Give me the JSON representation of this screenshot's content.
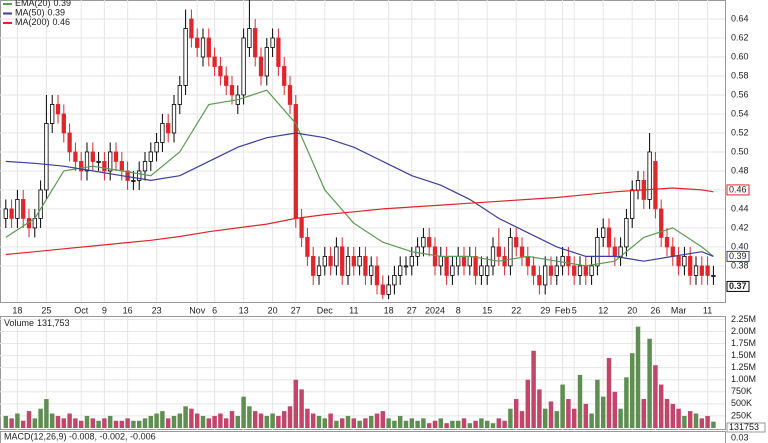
{
  "chart_data": {
    "type": "candlestick",
    "ylim": [
      0.342,
      0.66
    ],
    "yticks": [
      {
        "value": 0.38,
        "label": "0.38"
      },
      {
        "value": 0.4,
        "label": "0.40"
      },
      {
        "value": 0.42,
        "label": "0.42"
      },
      {
        "value": 0.44,
        "label": "0.44"
      },
      {
        "value": 0.46,
        "label": "0.46"
      },
      {
        "value": 0.48,
        "label": "0.48"
      },
      {
        "value": 0.5,
        "label": "0.50"
      },
      {
        "value": 0.52,
        "label": "0.52"
      },
      {
        "value": 0.54,
        "label": "0.54"
      },
      {
        "value": 0.56,
        "label": "0.56"
      },
      {
        "value": 0.58,
        "label": "0.58"
      },
      {
        "value": 0.6,
        "label": "0.60"
      },
      {
        "value": 0.62,
        "label": "0.62"
      },
      {
        "value": 0.64,
        "label": "0.64"
      }
    ],
    "xlim": [
      -1,
      124
    ],
    "xticks": [
      {
        "value": 2,
        "label": "18"
      },
      {
        "value": 7,
        "label": "25"
      },
      {
        "value": 13,
        "label": "Oct"
      },
      {
        "value": 17,
        "label": "9"
      },
      {
        "value": 21,
        "label": "16"
      },
      {
        "value": 26,
        "label": "23"
      },
      {
        "value": 33,
        "label": "Nov"
      },
      {
        "value": 36,
        "label": "6"
      },
      {
        "value": 41,
        "label": "13"
      },
      {
        "value": 46,
        "label": "20"
      },
      {
        "value": 50,
        "label": "27"
      },
      {
        "value": 55,
        "label": "Dec"
      },
      {
        "value": 60,
        "label": "11"
      },
      {
        "value": 66,
        "label": "18"
      },
      {
        "value": 70,
        "label": "27"
      },
      {
        "value": 74,
        "label": "2024"
      },
      {
        "value": 78,
        "label": "8"
      },
      {
        "value": 83,
        "label": "15"
      },
      {
        "value": 88,
        "label": "22"
      },
      {
        "value": 93,
        "label": "29"
      },
      {
        "value": 96,
        "label": "Feb"
      },
      {
        "value": 98,
        "label": "5"
      },
      {
        "value": 103,
        "label": "12"
      },
      {
        "value": 108,
        "label": "20"
      },
      {
        "value": 112,
        "label": "26"
      },
      {
        "value": 116,
        "label": "Mar"
      },
      {
        "value": 121,
        "label": "11"
      }
    ],
    "grid": true,
    "up_color": "#000000",
    "down_color": "#e0262b",
    "open": [
      0.43,
      0.44,
      0.43,
      0.45,
      0.43,
      0.42,
      0.43,
      0.46,
      0.53,
      0.55,
      0.54,
      0.52,
      0.5,
      0.49,
      0.48,
      0.5,
      0.49,
      0.49,
      0.48,
      0.5,
      0.49,
      0.48,
      0.47,
      0.47,
      0.48,
      0.49,
      0.5,
      0.51,
      0.53,
      0.52,
      0.55,
      0.57,
      0.64,
      0.62,
      0.6,
      0.62,
      0.6,
      0.59,
      0.58,
      0.57,
      0.55,
      0.56,
      0.61,
      0.63,
      0.6,
      0.58,
      0.61,
      0.62,
      0.59,
      0.57,
      0.55,
      0.43,
      0.41,
      0.39,
      0.37,
      0.38,
      0.39,
      0.38,
      0.4,
      0.37,
      0.39,
      0.38,
      0.39,
      0.37,
      0.38,
      0.36,
      0.35,
      0.36,
      0.37,
      0.38,
      0.38,
      0.39,
      0.4,
      0.41,
      0.4,
      0.38,
      0.39,
      0.37,
      0.38,
      0.39,
      0.38,
      0.39,
      0.37,
      0.37,
      0.38,
      0.4,
      0.39,
      0.38,
      0.41,
      0.4,
      0.39,
      0.38,
      0.37,
      0.36,
      0.38,
      0.37,
      0.38,
      0.39,
      0.38,
      0.37,
      0.38,
      0.37,
      0.38,
      0.41,
      0.42,
      0.4,
      0.39,
      0.4,
      0.43,
      0.46,
      0.47,
      0.45,
      0.49,
      0.44,
      0.41,
      0.4,
      0.39,
      0.38,
      0.39,
      0.37,
      0.38,
      0.38,
      0.37
    ],
    "high": [
      0.45,
      0.45,
      0.46,
      0.46,
      0.44,
      0.44,
      0.47,
      0.56,
      0.56,
      0.56,
      0.55,
      0.53,
      0.51,
      0.5,
      0.51,
      0.51,
      0.5,
      0.5,
      0.51,
      0.51,
      0.5,
      0.49,
      0.48,
      0.49,
      0.5,
      0.51,
      0.52,
      0.54,
      0.54,
      0.56,
      0.58,
      0.65,
      0.65,
      0.63,
      0.63,
      0.63,
      0.61,
      0.6,
      0.59,
      0.58,
      0.57,
      0.63,
      0.66,
      0.64,
      0.61,
      0.62,
      0.63,
      0.63,
      0.6,
      0.58,
      0.56,
      0.44,
      0.42,
      0.4,
      0.39,
      0.4,
      0.4,
      0.41,
      0.41,
      0.4,
      0.4,
      0.4,
      0.4,
      0.39,
      0.39,
      0.37,
      0.37,
      0.38,
      0.39,
      0.39,
      0.4,
      0.41,
      0.42,
      0.42,
      0.41,
      0.4,
      0.4,
      0.39,
      0.4,
      0.4,
      0.4,
      0.4,
      0.39,
      0.39,
      0.41,
      0.42,
      0.4,
      0.42,
      0.42,
      0.41,
      0.4,
      0.39,
      0.38,
      0.39,
      0.39,
      0.39,
      0.4,
      0.4,
      0.39,
      0.39,
      0.39,
      0.39,
      0.42,
      0.43,
      0.43,
      0.41,
      0.41,
      0.44,
      0.47,
      0.48,
      0.48,
      0.52,
      0.5,
      0.45,
      0.42,
      0.41,
      0.4,
      0.4,
      0.4,
      0.39,
      0.39,
      0.39,
      0.38
    ],
    "low": [
      0.42,
      0.42,
      0.42,
      0.42,
      0.41,
      0.41,
      0.42,
      0.45,
      0.52,
      0.53,
      0.51,
      0.49,
      0.48,
      0.47,
      0.47,
      0.48,
      0.48,
      0.47,
      0.47,
      0.48,
      0.47,
      0.46,
      0.46,
      0.46,
      0.47,
      0.48,
      0.49,
      0.5,
      0.51,
      0.51,
      0.54,
      0.56,
      0.61,
      0.6,
      0.59,
      0.59,
      0.58,
      0.57,
      0.56,
      0.55,
      0.54,
      0.55,
      0.6,
      0.59,
      0.57,
      0.57,
      0.6,
      0.58,
      0.56,
      0.54,
      0.42,
      0.4,
      0.38,
      0.36,
      0.36,
      0.37,
      0.37,
      0.37,
      0.36,
      0.36,
      0.37,
      0.37,
      0.36,
      0.36,
      0.35,
      0.345,
      0.345,
      0.35,
      0.36,
      0.37,
      0.37,
      0.38,
      0.39,
      0.39,
      0.37,
      0.37,
      0.36,
      0.36,
      0.37,
      0.37,
      0.37,
      0.36,
      0.36,
      0.36,
      0.37,
      0.38,
      0.37,
      0.37,
      0.39,
      0.38,
      0.37,
      0.36,
      0.35,
      0.35,
      0.36,
      0.36,
      0.37,
      0.37,
      0.36,
      0.36,
      0.36,
      0.36,
      0.37,
      0.4,
      0.39,
      0.38,
      0.38,
      0.39,
      0.42,
      0.45,
      0.44,
      0.44,
      0.43,
      0.4,
      0.39,
      0.38,
      0.37,
      0.37,
      0.36,
      0.36,
      0.36,
      0.36,
      0.36
    ],
    "close": [
      0.44,
      0.43,
      0.45,
      0.43,
      0.42,
      0.43,
      0.46,
      0.53,
      0.55,
      0.54,
      0.52,
      0.5,
      0.49,
      0.48,
      0.5,
      0.49,
      0.49,
      0.48,
      0.5,
      0.49,
      0.48,
      0.47,
      0.47,
      0.48,
      0.49,
      0.5,
      0.51,
      0.53,
      0.52,
      0.55,
      0.57,
      0.63,
      0.62,
      0.61,
      0.62,
      0.6,
      0.59,
      0.58,
      0.57,
      0.56,
      0.56,
      0.62,
      0.63,
      0.6,
      0.58,
      0.61,
      0.62,
      0.59,
      0.57,
      0.55,
      0.43,
      0.41,
      0.39,
      0.37,
      0.38,
      0.39,
      0.38,
      0.4,
      0.37,
      0.39,
      0.38,
      0.39,
      0.37,
      0.38,
      0.36,
      0.35,
      0.36,
      0.37,
      0.38,
      0.38,
      0.39,
      0.4,
      0.41,
      0.4,
      0.38,
      0.39,
      0.37,
      0.38,
      0.39,
      0.38,
      0.39,
      0.37,
      0.38,
      0.38,
      0.4,
      0.39,
      0.38,
      0.41,
      0.4,
      0.39,
      0.38,
      0.37,
      0.36,
      0.38,
      0.37,
      0.38,
      0.39,
      0.38,
      0.37,
      0.38,
      0.37,
      0.38,
      0.41,
      0.42,
      0.4,
      0.39,
      0.4,
      0.43,
      0.46,
      0.47,
      0.45,
      0.5,
      0.44,
      0.41,
      0.4,
      0.39,
      0.38,
      0.39,
      0.37,
      0.38,
      0.37,
      0.37,
      0.37
    ],
    "overlays": [
      {
        "name": "EMA(20)",
        "last": 0.39,
        "color": "#5d9a52",
        "x": [
          0,
          5,
          10,
          15,
          20,
          25,
          30,
          35,
          40,
          45,
          50,
          55,
          60,
          65,
          70,
          75,
          80,
          85,
          90,
          95,
          100,
          105,
          110,
          115,
          120,
          122
        ],
        "values": [
          0.41,
          0.43,
          0.48,
          0.485,
          0.48,
          0.475,
          0.5,
          0.55,
          0.555,
          0.565,
          0.53,
          0.46,
          0.425,
          0.405,
          0.395,
          0.39,
          0.39,
          0.385,
          0.39,
          0.385,
          0.38,
          0.385,
          0.41,
          0.42,
          0.4,
          0.39
        ]
      },
      {
        "name": "MA(50)",
        "last": 0.39,
        "color": "#3a3f9c",
        "x": [
          0,
          5,
          10,
          15,
          20,
          25,
          30,
          35,
          40,
          45,
          50,
          55,
          60,
          65,
          70,
          75,
          80,
          85,
          90,
          95,
          100,
          105,
          110,
          115,
          120,
          122
        ],
        "values": [
          0.49,
          0.488,
          0.485,
          0.48,
          0.475,
          0.47,
          0.475,
          0.49,
          0.505,
          0.515,
          0.52,
          0.515,
          0.505,
          0.49,
          0.475,
          0.465,
          0.45,
          0.43,
          0.415,
          0.4,
          0.39,
          0.39,
          0.385,
          0.39,
          0.395,
          0.39
        ]
      },
      {
        "name": "MA(200)",
        "last": 0.46,
        "color": "#e0262b",
        "x": [
          0,
          5,
          10,
          15,
          20,
          25,
          30,
          35,
          40,
          45,
          50,
          55,
          60,
          65,
          70,
          75,
          80,
          85,
          90,
          95,
          100,
          105,
          110,
          115,
          120,
          122
        ],
        "values": [
          0.392,
          0.395,
          0.398,
          0.401,
          0.404,
          0.407,
          0.411,
          0.416,
          0.42,
          0.424,
          0.43,
          0.434,
          0.437,
          0.44,
          0.442,
          0.444,
          0.446,
          0.448,
          0.45,
          0.452,
          0.455,
          0.458,
          0.46,
          0.462,
          0.46,
          0.458
        ]
      }
    ],
    "volume": {
      "name": "Volume",
      "last_label": "131,753",
      "up_color": "#5e8f50",
      "down_color": "#c2456a",
      "ylim": [
        0,
        2300000
      ],
      "yticks": [
        {
          "value": 250000,
          "label": "250K"
        },
        {
          "value": 500000,
          "label": "500K"
        },
        {
          "value": 750000,
          "label": "750K"
        },
        {
          "value": 1000000,
          "label": "1.00M"
        },
        {
          "value": 1250000,
          "label": "1.25M"
        },
        {
          "value": 1500000,
          "label": "1.50M"
        },
        {
          "value": 1750000,
          "label": "1.75M"
        },
        {
          "value": 2000000,
          "label": "2.00M"
        },
        {
          "value": 2250000,
          "label": "2.25M"
        }
      ],
      "values": [
        250000,
        200000,
        300000,
        150000,
        350000,
        200000,
        400000,
        600000,
        300000,
        250000,
        200000,
        300000,
        200000,
        150000,
        250000,
        200000,
        150000,
        200000,
        250000,
        150000,
        150000,
        200000,
        150000,
        150000,
        200000,
        250000,
        300000,
        350000,
        200000,
        250000,
        300000,
        450000,
        400000,
        300000,
        250000,
        200000,
        250000,
        300000,
        200000,
        350000,
        250000,
        650000,
        450000,
        350000,
        300000,
        250000,
        300000,
        250000,
        350000,
        450000,
        1000000,
        800000,
        400000,
        300000,
        250000,
        200000,
        300000,
        150000,
        200000,
        250000,
        200000,
        150000,
        200000,
        250000,
        300000,
        350000,
        200000,
        150000,
        250000,
        150000,
        200000,
        150000,
        200000,
        100000,
        150000,
        200000,
        100000,
        150000,
        150000,
        200000,
        100000,
        150000,
        200000,
        150000,
        100000,
        200000,
        150000,
        400000,
        600000,
        350000,
        1000000,
        1600000,
        800000,
        400000,
        550000,
        350000,
        900000,
        600000,
        400000,
        1100000,
        500000,
        300000,
        1000000,
        650000,
        1450000,
        750000,
        400000,
        1050000,
        1550000,
        2100000,
        600000,
        1850000,
        1300000,
        900000,
        600000,
        500000,
        400000,
        250000,
        350000,
        300000,
        200000,
        250000,
        131753
      ]
    },
    "macd": {
      "label": "MACD(12,26,9) -0.008, -0.002, -0.006",
      "yticks": [
        {
          "value": 0.03,
          "label": "0.03"
        }
      ]
    }
  }
}
